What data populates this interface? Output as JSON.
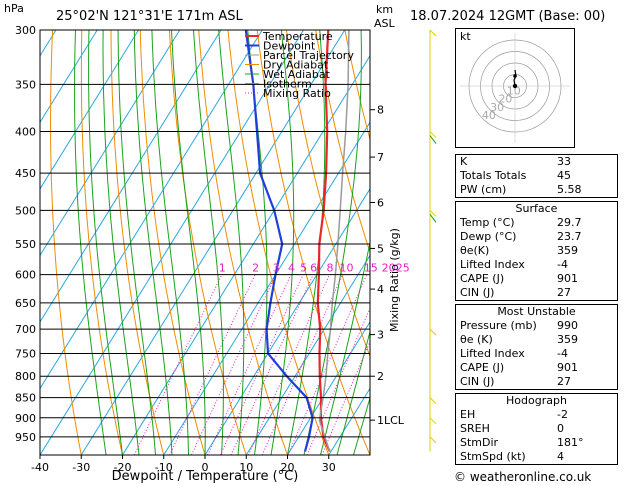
{
  "header": {
    "pressure_unit": "hPa",
    "location": "25°02'N  121°31'E  171m  ASL",
    "km_label": "km",
    "asl_label": "ASL",
    "datetime": "18.07.2024  12GMT  (Base: 00)"
  },
  "chart_data": {
    "type": "line",
    "xlabel": "Dewpoint / Temperature (°C)",
    "ylabel": "hPa",
    "xlim": [
      -40,
      40
    ],
    "x_ticks": [
      -40,
      -30,
      -20,
      -10,
      0,
      10,
      20,
      30
    ],
    "pressure_ticks": [
      300,
      350,
      400,
      450,
      500,
      550,
      600,
      650,
      700,
      750,
      800,
      850,
      900,
      950
    ],
    "ylim": [
      1000,
      300
    ],
    "km_ticks": [
      {
        "label": "8",
        "p": 376
      },
      {
        "label": "7",
        "p": 430
      },
      {
        "label": "6",
        "p": 489
      },
      {
        "label": "5",
        "p": 557
      },
      {
        "label": "4",
        "p": 625
      },
      {
        "label": "3",
        "p": 711
      },
      {
        "label": "2",
        "p": 800
      },
      {
        "label": "1LCL",
        "p": 906
      }
    ],
    "mixing_ratio_axis_label": "Mixing Ratio (g/kg)",
    "mixing_ratio_labels": [
      "1",
      "2",
      "3",
      "4",
      "5",
      "6",
      "8",
      "10",
      "15",
      "20",
      "25"
    ],
    "mixing_ratio_values": [
      1,
      2,
      3,
      4,
      5,
      6,
      8,
      10,
      15,
      20,
      25
    ],
    "legend": [
      "Temperature",
      "Dewpoint",
      "Parcel Trajectory",
      "Dry Adiabat",
      "Wet Adiabat",
      "Isotherm",
      "Mixing Ratio"
    ],
    "series": [
      {
        "name": "Temperature",
        "color": "#e8262b",
        "points": [
          [
            990,
            29.7
          ],
          [
            950,
            26.0
          ],
          [
            900,
            22.5
          ],
          [
            850,
            19.5
          ],
          [
            800,
            16.0
          ],
          [
            750,
            12.5
          ],
          [
            700,
            9.0
          ],
          [
            650,
            4.5
          ],
          [
            600,
            0.5
          ],
          [
            550,
            -4.0
          ],
          [
            500,
            -8.0
          ],
          [
            450,
            -13.0
          ],
          [
            400,
            -19.0
          ],
          [
            350,
            -26.5
          ],
          [
            300,
            -34.0
          ]
        ]
      },
      {
        "name": "Dewpoint",
        "color": "#1f3fd8",
        "points": [
          [
            990,
            23.7
          ],
          [
            950,
            22.5
          ],
          [
            900,
            20.5
          ],
          [
            850,
            16.0
          ],
          [
            800,
            8.0
          ],
          [
            750,
            0.0
          ],
          [
            700,
            -4.0
          ],
          [
            650,
            -7.0
          ],
          [
            600,
            -10.0
          ],
          [
            550,
            -13.0
          ],
          [
            500,
            -20.0
          ],
          [
            450,
            -29.0
          ],
          [
            400,
            -36.0
          ],
          [
            350,
            -44.0
          ],
          [
            300,
            -54.0
          ]
        ]
      },
      {
        "name": "Parcel Trajectory",
        "color": "#9a9a9a",
        "points": [
          [
            990,
            29.7
          ],
          [
            906,
            22.5
          ],
          [
            850,
            20.0
          ],
          [
            800,
            17.5
          ],
          [
            750,
            14.5
          ],
          [
            700,
            11.5
          ],
          [
            650,
            8.0
          ],
          [
            600,
            4.5
          ],
          [
            550,
            0.5
          ],
          [
            500,
            -4.0
          ],
          [
            450,
            -9.0
          ],
          [
            400,
            -14.5
          ],
          [
            350,
            -21.0
          ],
          [
            300,
            -29.0
          ]
        ]
      }
    ],
    "colors": {
      "isotherm": "#29a8e0",
      "dry_adiabat": "#f08c00",
      "wet_adiabat": "#1aa31a",
      "mixing_ratio": "#e020c8",
      "wind": "#ddd000"
    },
    "grid": true
  },
  "hodograph": {
    "unit_label": "kt",
    "ring_labels": [
      "10",
      "20",
      "30",
      "40"
    ]
  },
  "indices": {
    "k": {
      "label": "K",
      "value": "33"
    },
    "totals_totals": {
      "label": "Totals Totals",
      "value": "45"
    },
    "pw": {
      "label": "PW (cm)",
      "value": "5.58"
    }
  },
  "surface": {
    "title": "Surface",
    "temp": {
      "label": "Temp (°C)",
      "value": "29.7"
    },
    "dewp": {
      "label": "Dewp (°C)",
      "value": "23.7"
    },
    "theta_e": {
      "label": "θe(K)",
      "value": "359"
    },
    "lifted_index": {
      "label": "Lifted Index",
      "value": "-4"
    },
    "cape": {
      "label": "CAPE (J)",
      "value": "901"
    },
    "cin": {
      "label": "CIN (J)",
      "value": "27"
    }
  },
  "most_unstable": {
    "title": "Most Unstable",
    "pressure": {
      "label": "Pressure (mb)",
      "value": "990"
    },
    "theta_e": {
      "label": "θe (K)",
      "value": "359"
    },
    "lifted_index": {
      "label": "Lifted Index",
      "value": "-4"
    },
    "cape": {
      "label": "CAPE (J)",
      "value": "901"
    },
    "cin": {
      "label": "CIN (J)",
      "value": "27"
    }
  },
  "hodograph_stats": {
    "title": "Hodograph",
    "eh": {
      "label": "EH",
      "value": "-2"
    },
    "sreh": {
      "label": "SREH",
      "value": "0"
    },
    "stmdir": {
      "label": "StmDir",
      "value": "181°"
    },
    "stmspd": {
      "label": "StmSpd (kt)",
      "value": "4"
    }
  },
  "credit": "© weatheronline.co.uk"
}
